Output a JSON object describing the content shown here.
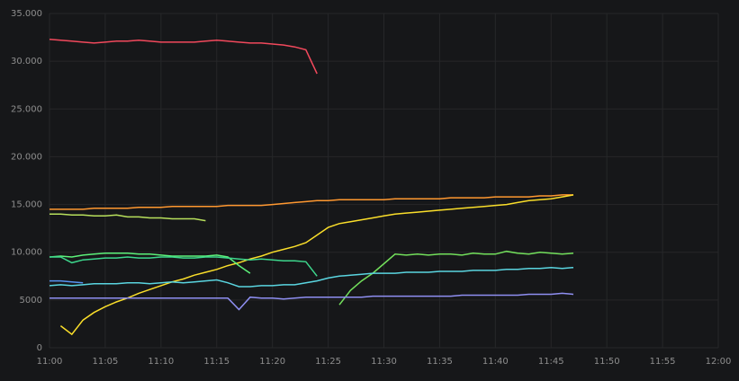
{
  "chart_data": {
    "type": "line",
    "x": [
      "11:00",
      "11:01",
      "11:02",
      "11:03",
      "11:04",
      "11:05",
      "11:06",
      "11:07",
      "11:08",
      "11:09",
      "11:10",
      "11:11",
      "11:12",
      "11:13",
      "11:14",
      "11:15",
      "11:16",
      "11:17",
      "11:18",
      "11:19",
      "11:20",
      "11:21",
      "11:22",
      "11:23",
      "11:24",
      "11:25",
      "11:26",
      "11:27",
      "11:28",
      "11:29",
      "11:30",
      "11:31",
      "11:32",
      "11:33",
      "11:34",
      "11:35",
      "11:36",
      "11:37",
      "11:38",
      "11:39",
      "11:40",
      "11:41",
      "11:42",
      "11:43",
      "11:44",
      "11:45",
      "11:46",
      "11:47"
    ],
    "xlim": [
      "11:00",
      "12:00"
    ],
    "xticks": [
      "11:00",
      "11:05",
      "11:10",
      "11:15",
      "11:20",
      "11:25",
      "11:30",
      "11:35",
      "11:40",
      "11:45",
      "11:50",
      "11:55",
      "12:00"
    ],
    "ylim": [
      0,
      35000
    ],
    "yticks": [
      0,
      5000,
      {
        "value": 10000,
        "label": "10.000"
      },
      {
        "value": 15000,
        "label": "15.000"
      },
      {
        "value": 20000,
        "label": "20.000"
      },
      {
        "value": 25000,
        "label": "25.000"
      },
      {
        "value": 30000,
        "label": "30.000"
      },
      {
        "value": 35000,
        "label": "35.000"
      }
    ],
    "grid": true,
    "series": [
      {
        "color": "#f2495c",
        "values": [
          32300,
          32200,
          32100,
          32000,
          31900,
          32000,
          32100,
          32100,
          32200,
          32100,
          32000,
          32000,
          32000,
          32000,
          32100,
          32200,
          32100,
          32000,
          31900,
          31900,
          31800,
          31700,
          31500,
          31200,
          28700,
          null,
          null,
          null,
          null,
          null,
          null,
          null,
          null,
          null,
          null,
          null,
          null,
          null,
          null,
          null,
          null,
          null,
          null,
          null,
          null,
          null,
          null,
          null
        ]
      },
      {
        "color": "#ff9830",
        "values": [
          14500,
          14500,
          14500,
          14500,
          14600,
          14600,
          14600,
          14600,
          14700,
          14700,
          14700,
          14800,
          14800,
          14800,
          14800,
          14800,
          14900,
          14900,
          14900,
          14900,
          15000,
          15100,
          15200,
          15300,
          15400,
          15400,
          15500,
          15500,
          15500,
          15500,
          15500,
          15600,
          15600,
          15600,
          15600,
          15600,
          15700,
          15700,
          15700,
          15700,
          15800,
          15800,
          15800,
          15800,
          15900,
          15900,
          16000,
          16000
        ]
      },
      {
        "color": "#b8e05c",
        "values": [
          14000,
          14000,
          13900,
          13900,
          13800,
          13800,
          13900,
          13700,
          13700,
          13600,
          13600,
          13500,
          13500,
          13500,
          13300,
          null,
          null,
          null,
          null,
          null,
          null,
          null,
          null,
          null,
          null,
          null,
          null,
          null,
          null,
          null,
          null,
          null,
          null,
          null,
          null,
          null,
          null,
          null,
          null,
          null,
          null,
          null,
          null,
          null,
          null,
          null,
          null,
          null
        ]
      },
      {
        "color": "#fade2a",
        "values": [
          null,
          2300,
          1400,
          2900,
          3700,
          4300,
          4800,
          5200,
          5700,
          6100,
          6500,
          6900,
          7200,
          7600,
          7900,
          8200,
          8600,
          8900,
          9300,
          9600,
          10000,
          10300,
          10600,
          11000,
          11800,
          12600,
          13000,
          13200,
          13400,
          13600,
          13800,
          14000,
          14100,
          14200,
          14300,
          14400,
          14500,
          14600,
          14700,
          14800,
          14900,
          15000,
          15200,
          15400,
          15500,
          15600,
          15800,
          16000
        ]
      },
      {
        "color": "#73e05c",
        "values": [
          null,
          null,
          null,
          null,
          null,
          null,
          null,
          null,
          null,
          null,
          null,
          null,
          null,
          null,
          null,
          null,
          null,
          null,
          null,
          null,
          null,
          null,
          null,
          null,
          null,
          null,
          4500,
          6000,
          7000,
          7800,
          8800,
          9800,
          9700,
          9800,
          9700,
          9800,
          9800,
          9700,
          9900,
          9800,
          9800,
          10100,
          9900,
          9800,
          10000,
          9900,
          9800,
          9900
        ]
      },
      {
        "color": "#5cf27a",
        "values": [
          9500,
          9600,
          9500,
          9700,
          9800,
          9900,
          9900,
          9900,
          9800,
          9800,
          9700,
          9600,
          9600,
          9600,
          9600,
          9700,
          9500,
          8600,
          7800,
          null,
          null,
          null,
          null,
          null,
          null,
          null,
          null,
          null,
          null,
          null,
          null,
          null,
          null,
          null,
          null,
          null,
          null,
          null,
          null,
          null,
          null,
          null,
          null,
          null,
          null,
          null,
          null,
          null
        ]
      },
      {
        "color": "#3dd68c",
        "values": [
          9500,
          9500,
          8900,
          9200,
          9300,
          9400,
          9400,
          9500,
          9400,
          9400,
          9500,
          9500,
          9400,
          9400,
          9500,
          9500,
          9400,
          9300,
          9200,
          9300,
          9200,
          9100,
          9100,
          9000,
          7500,
          null,
          null,
          null,
          null,
          null,
          null,
          null,
          null,
          null,
          null,
          null,
          null,
          null,
          null,
          null,
          null,
          null,
          null,
          null,
          null,
          null,
          null,
          null
        ]
      },
      {
        "color": "#5ad5e0",
        "values": [
          6500,
          6600,
          6500,
          6600,
          6700,
          6700,
          6700,
          6800,
          6800,
          6700,
          6800,
          6900,
          6800,
          6900,
          7000,
          7100,
          6800,
          6400,
          6400,
          6500,
          6500,
          6600,
          6600,
          6800,
          7000,
          7300,
          7500,
          7600,
          7700,
          7800,
          7800,
          7800,
          7900,
          7900,
          7900,
          8000,
          8000,
          8000,
          8100,
          8100,
          8100,
          8200,
          8200,
          8300,
          8300,
          8400,
          8300,
          8400
        ]
      },
      {
        "color": "#5794f2",
        "values": [
          7000,
          7000,
          6900,
          6800,
          null,
          null,
          null,
          null,
          null,
          null,
          null,
          null,
          null,
          null,
          null,
          null,
          null,
          null,
          null,
          null,
          null,
          null,
          null,
          null,
          null,
          null,
          null,
          null,
          null,
          null,
          null,
          null,
          null,
          null,
          null,
          null,
          null,
          null,
          null,
          null,
          null,
          null,
          null,
          null,
          null,
          null,
          null,
          null
        ]
      },
      {
        "color": "#8f8ff2",
        "values": [
          5200,
          5200,
          5200,
          5200,
          5200,
          5200,
          5200,
          5200,
          5200,
          5200,
          5200,
          5200,
          5200,
          5200,
          5200,
          5200,
          5200,
          4000,
          5300,
          5200,
          5200,
          5100,
          5200,
          5300,
          5300,
          5300,
          5300,
          5300,
          5300,
          5400,
          5400,
          5400,
          5400,
          5400,
          5400,
          5400,
          5400,
          5500,
          5500,
          5500,
          5500,
          5500,
          5500,
          5600,
          5600,
          5600,
          5700,
          5600
        ]
      }
    ]
  }
}
